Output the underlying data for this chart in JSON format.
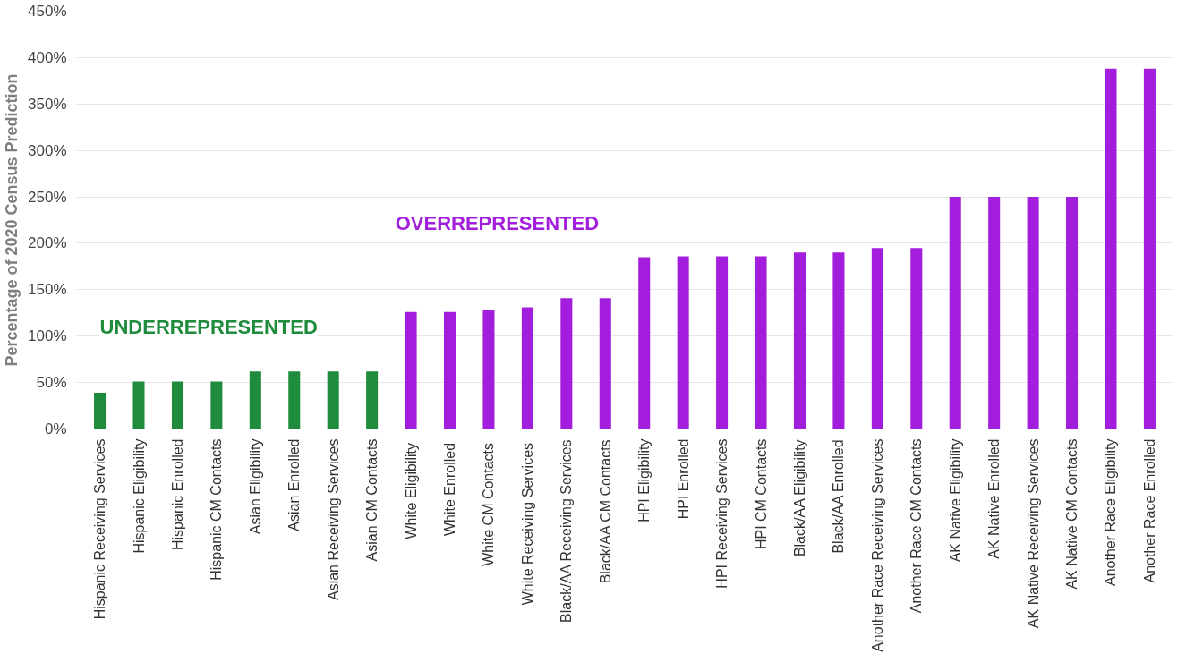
{
  "chart_data": {
    "type": "bar",
    "ylabel": "Percentage of 2020 Census Prediction",
    "categories": [
      "Hispanic Receiving Services",
      "Hispanic Eligibility",
      "Hispanic Enrolled",
      "Hispanic CM Contacts",
      "Asian Eligibility",
      "Asian Enrolled",
      "Asian Receiving Services",
      "Asian CM Contacts",
      "White  Eligibility",
      "White  Enrolled",
      "White  CM Contacts",
      "White  Receiving Services",
      "Black/AA Receiving Services",
      "Black/AA CM Contacts",
      "HPI Eligibility",
      "HPI Enrolled",
      "HPI Receiving Services",
      "HPI CM Contacts",
      "Black/AA Eligibility",
      "Black/AA Enrolled",
      "Another Race Receiving Services",
      "Another Race CM Contacts",
      "AK Native Eligibility",
      "AK Native Enrolled",
      "AK Native Receiving Services",
      "AK Native CM Contacts",
      "Another Race Eligibility",
      "Another Race Enrolled"
    ],
    "values": [
      39,
      51,
      51,
      51,
      62,
      62,
      62,
      62,
      126,
      126,
      128,
      131,
      141,
      141,
      185,
      186,
      186,
      186,
      190,
      190,
      195,
      195,
      250,
      250,
      250,
      250,
      388,
      388
    ],
    "colors": [
      "#1e8c3c",
      "#1e8c3c",
      "#1e8c3c",
      "#1e8c3c",
      "#1e8c3c",
      "#1e8c3c",
      "#1e8c3c",
      "#1e8c3c",
      "#a21ddc",
      "#a21ddc",
      "#a21ddc",
      "#a21ddc",
      "#a21ddc",
      "#a21ddc",
      "#a21ddc",
      "#a21ddc",
      "#a21ddc",
      "#a21ddc",
      "#a21ddc",
      "#a21ddc",
      "#a21ddc",
      "#a21ddc",
      "#a21ddc",
      "#a21ddc",
      "#a21ddc",
      "#a21ddc",
      "#a21ddc",
      "#a21ddc"
    ],
    "annotations": [
      "UNDERREPRESENTED",
      "OVERREPRESENTED"
    ],
    "ylim": [
      0,
      450
    ],
    "yticks": [
      {
        "value": 0,
        "label": "0%"
      },
      {
        "value": 50,
        "label": "50%"
      },
      {
        "value": 100,
        "label": "100%"
      },
      {
        "value": 150,
        "label": "150%"
      },
      {
        "value": 200,
        "label": "200%"
      },
      {
        "value": 250,
        "label": "250%"
      },
      {
        "value": 300,
        "label": "300%"
      },
      {
        "value": 350,
        "label": "350%"
      },
      {
        "value": 400,
        "label": "400%"
      },
      {
        "value": 450,
        "label": "450%"
      }
    ],
    "grid": "y"
  }
}
